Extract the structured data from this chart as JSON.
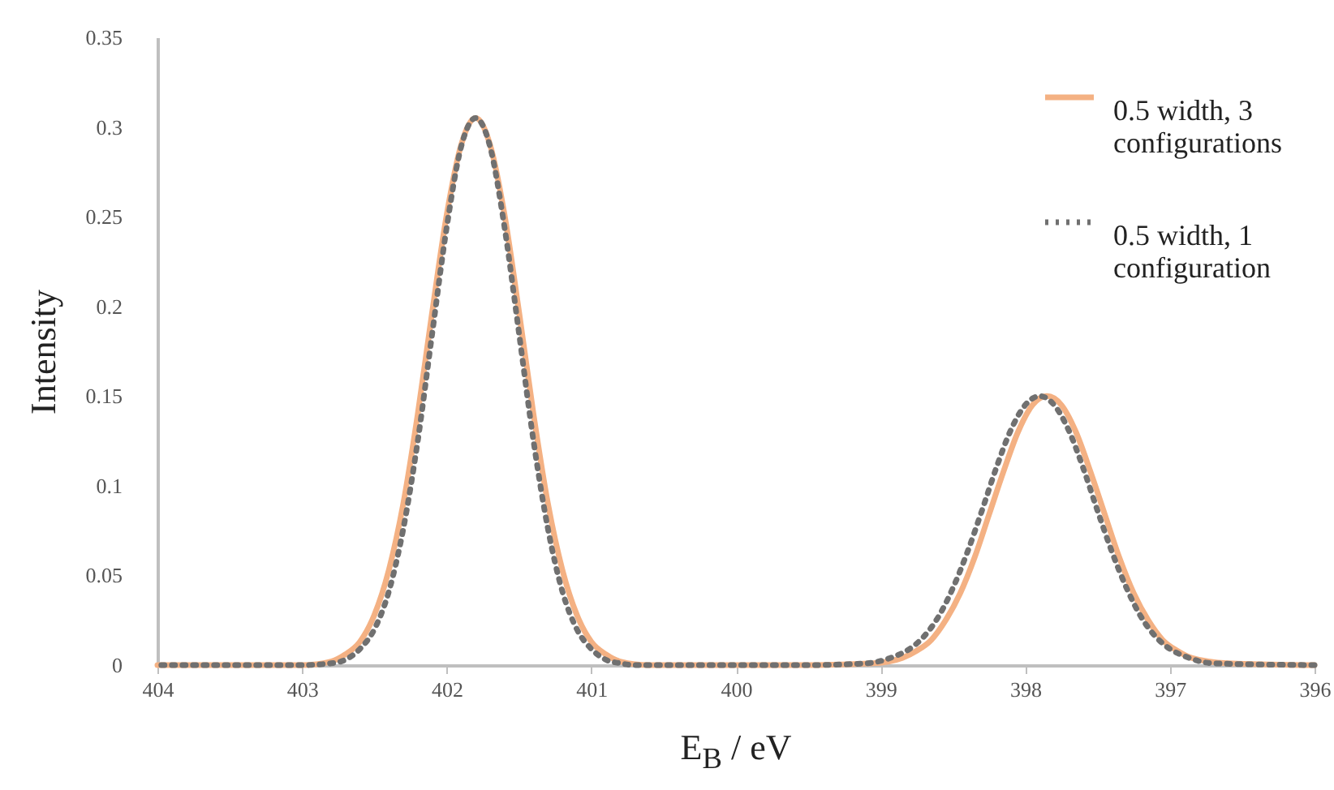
{
  "chart_data": {
    "type": "line",
    "xlabel": "E$_{B}$ / eV",
    "ylabel": "Intensity",
    "xlim": [
      404,
      396
    ],
    "xticks": [
      404,
      403,
      402,
      401,
      400,
      399,
      398,
      397,
      396
    ],
    "ylim": [
      0,
      0.35
    ],
    "yticks": [
      0,
      0.05,
      0.1,
      0.15,
      0.2,
      0.25,
      0.3,
      0.35
    ],
    "grid": false,
    "legend": "top right",
    "marker": "none",
    "series": [
      {
        "name": "0.5 width, 3 configurations",
        "color": "#f4b183",
        "line_style": "solid",
        "x": [
          396,
          396.6,
          396.85,
          396.95,
          397.05,
          397.15,
          397.25,
          397.35,
          397.45,
          397.55,
          397.65,
          397.75,
          397.85,
          397.95,
          398.05,
          398.15,
          398.25,
          398.35,
          398.45,
          398.55,
          398.65,
          398.75,
          398.85,
          399.05,
          399.5,
          400,
          400.6,
          400.8,
          400.9,
          401,
          401.1,
          401.2,
          401.3,
          401.4,
          401.5,
          401.6,
          401.7,
          401.8,
          401.9,
          402,
          402.1,
          402.2,
          402.3,
          402.4,
          402.5,
          402.6,
          402.7,
          402.8,
          403,
          404
        ],
        "values": [
          0,
          0.001,
          0.004,
          0.008,
          0.014,
          0.025,
          0.04,
          0.06,
          0.084,
          0.108,
          0.13,
          0.145,
          0.15,
          0.145,
          0.13,
          0.108,
          0.084,
          0.06,
          0.04,
          0.025,
          0.014,
          0.008,
          0.004,
          0.001,
          0,
          0,
          0,
          0.002,
          0.006,
          0.013,
          0.028,
          0.053,
          0.09,
          0.14,
          0.197,
          0.251,
          0.29,
          0.305,
          0.29,
          0.251,
          0.197,
          0.14,
          0.09,
          0.053,
          0.028,
          0.013,
          0.006,
          0.002,
          0,
          0
        ]
      },
      {
        "name": "0.5 width, 1 configuration",
        "color": "#707070",
        "line_style": "dotted",
        "x": [
          396,
          396.7,
          396.9,
          397,
          397.1,
          397.2,
          397.3,
          397.4,
          397.5,
          397.6,
          397.7,
          397.8,
          397.9,
          398,
          398.1,
          398.2,
          398.3,
          398.4,
          398.5,
          398.6,
          398.7,
          398.8,
          398.9,
          399.1,
          399.5,
          400,
          400.7,
          400.8,
          400.9,
          401,
          401.1,
          401.2,
          401.3,
          401.4,
          401.5,
          401.6,
          401.7,
          401.8,
          401.9,
          402,
          402.1,
          402.2,
          402.3,
          402.4,
          402.5,
          402.6,
          402.7,
          402.8,
          403,
          404
        ],
        "values": [
          0,
          0.001,
          0.005,
          0.009,
          0.016,
          0.027,
          0.043,
          0.063,
          0.086,
          0.11,
          0.131,
          0.145,
          0.15,
          0.145,
          0.131,
          0.11,
          0.086,
          0.063,
          0.043,
          0.027,
          0.016,
          0.009,
          0.005,
          0.001,
          0,
          0,
          0,
          0.001,
          0.003,
          0.009,
          0.02,
          0.041,
          0.076,
          0.125,
          0.185,
          0.244,
          0.289,
          0.305,
          0.289,
          0.244,
          0.185,
          0.125,
          0.076,
          0.041,
          0.02,
          0.009,
          0.003,
          0.001,
          0,
          0
        ]
      }
    ]
  }
}
